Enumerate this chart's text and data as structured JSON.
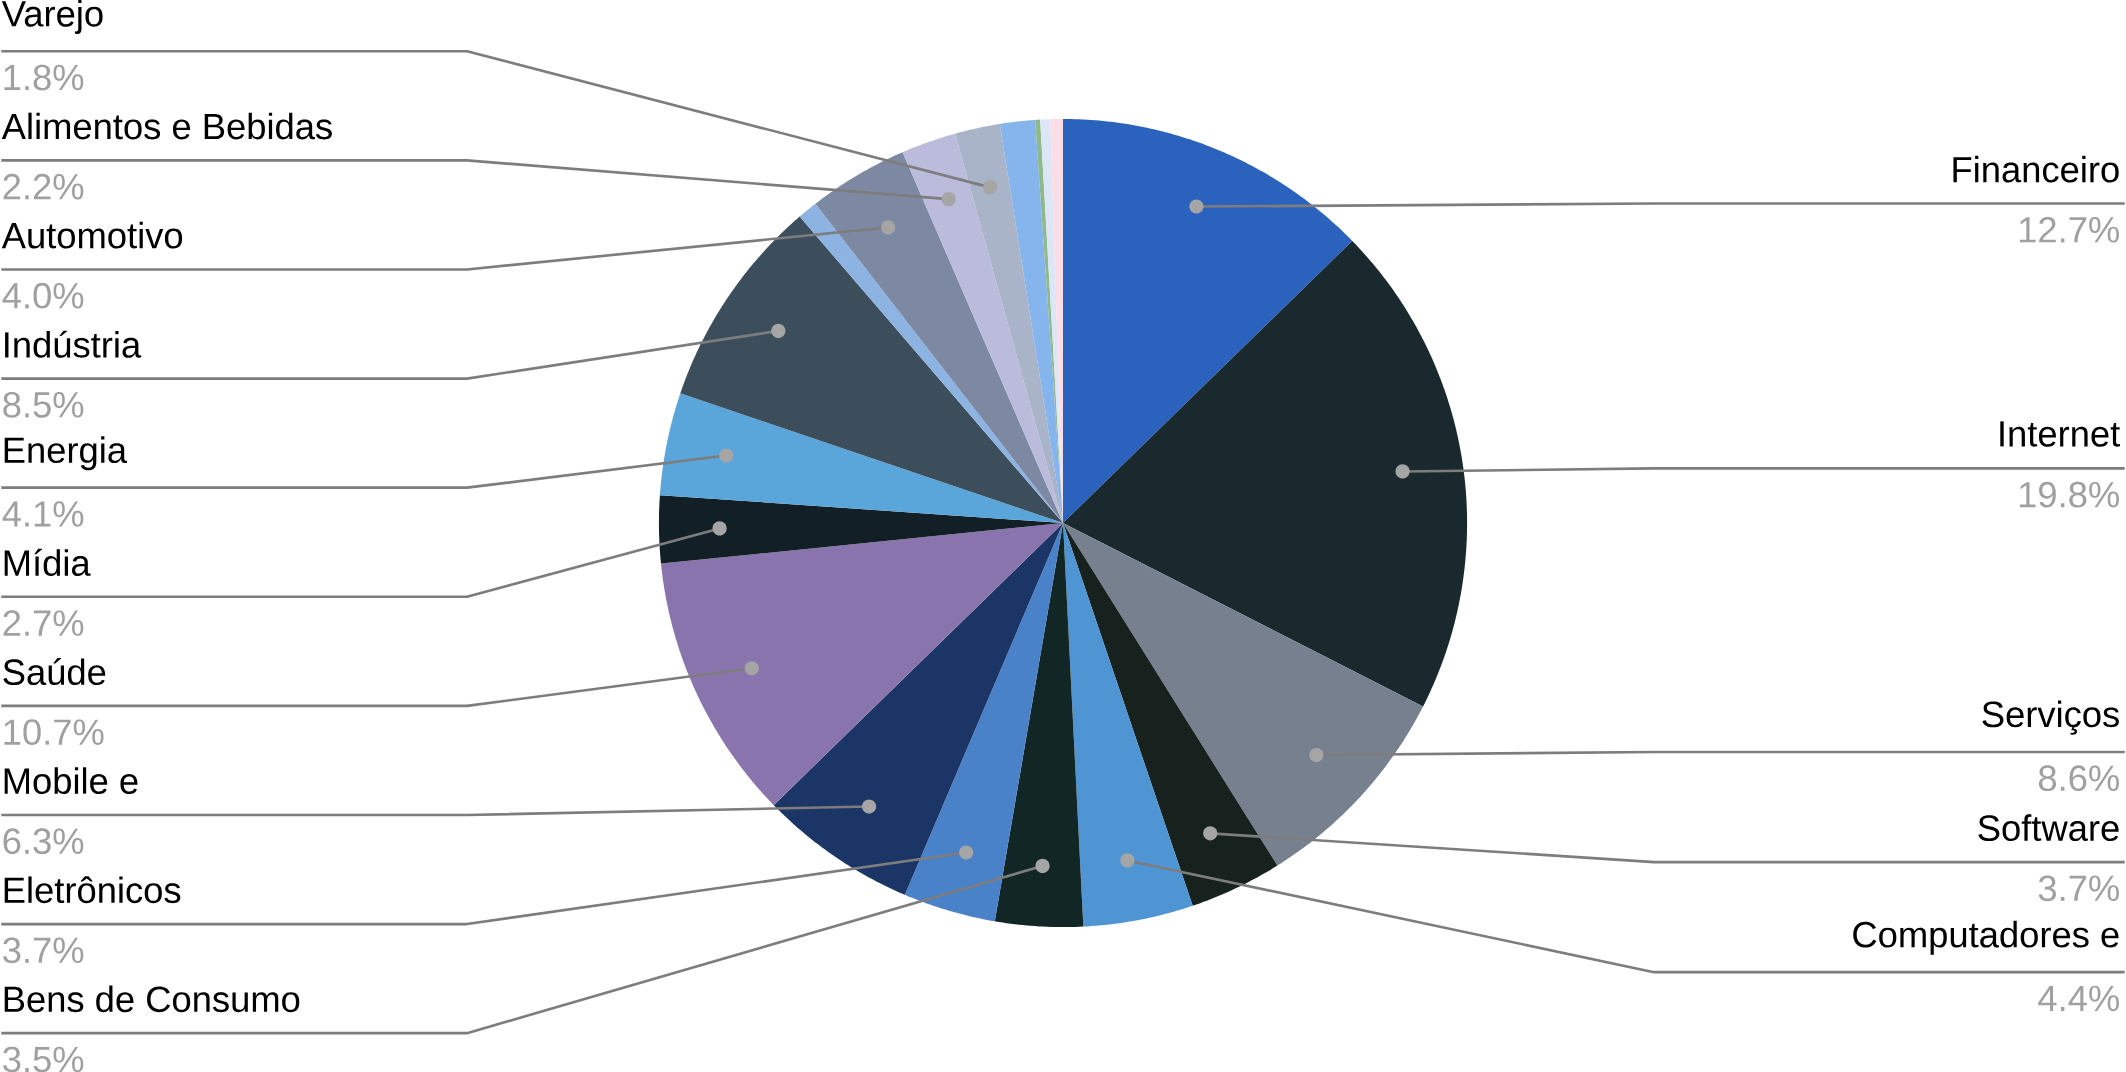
{
  "chart_data": {
    "type": "pie",
    "categories": [
      "Financeiro",
      "Internet",
      "Serviços",
      "Software",
      "Computadores e",
      "Bens de Consumo",
      "Eletrônicos",
      "Mobile e",
      "Saúde",
      "Mídia",
      "Energia",
      "Indústria",
      null,
      "Automotivo",
      "Alimentos e Bebidas",
      "Varejo",
      null,
      null,
      null,
      null
    ],
    "values": [
      12.7,
      19.8,
      8.6,
      3.7,
      4.4,
      3.5,
      3.7,
      6.3,
      10.7,
      2.7,
      4.1,
      8.5,
      0.8,
      4.0,
      2.2,
      1.8,
      1.4,
      0.2,
      0.4,
      0.5
    ],
    "value_labels": [
      "12.7%",
      "19.8%",
      "8.6%",
      "3.7%",
      "4.4%",
      "3.5%",
      "3.7%",
      "6.3%",
      "10.7%",
      "2.7%",
      "4.1%",
      "8.5%",
      null,
      "4.0%",
      "2.2%",
      "1.8%",
      null,
      null,
      null,
      null
    ],
    "colors": [
      "#2a62bd",
      "#1a292e",
      "#77808f",
      "#17221f",
      "#4f95d4",
      "#132626",
      "#4a82ca",
      "#1b3666",
      "#8a74ae",
      "#121f26",
      "#5aa5da",
      "#3c4d5b",
      "#8db3e2",
      "#7d89a3",
      "#bbbbdc",
      "#a9b4c8",
      "#86b4ec",
      "#8fb98a",
      "#dde6f7",
      "#fbdde6"
    ]
  }
}
